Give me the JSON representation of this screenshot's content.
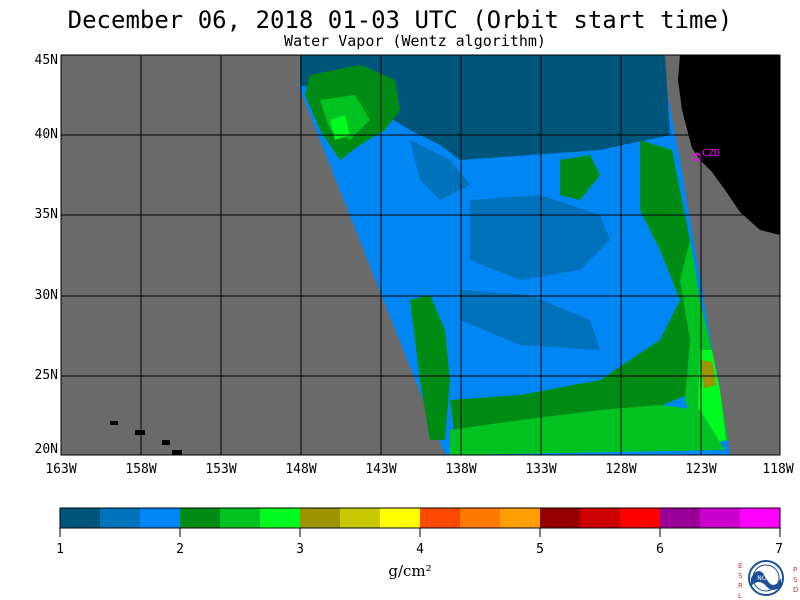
{
  "header": {
    "title": "December 06, 2018  01-03 UTC  (Orbit start time)",
    "subtitle": "Water Vapor (Wentz algorithm)"
  },
  "map": {
    "lat_labels": [
      "45N",
      "40N",
      "35N",
      "30N",
      "25N",
      "20N"
    ],
    "lon_labels": [
      "163W",
      "158W",
      "153W",
      "148W",
      "143W",
      "138W",
      "133W",
      "128W",
      "123W",
      "118W"
    ],
    "lat_range": [
      20,
      45
    ],
    "lon_range": [
      -163,
      -118
    ],
    "station_label": "CZD",
    "colors": {
      "no_data": "#6a6a6a",
      "land": "#000000",
      "grid": "#000000",
      "station": "#ff00ff"
    }
  },
  "colorbar": {
    "tick_labels": [
      "1",
      "2",
      "3",
      "4",
      "5",
      "6",
      "7"
    ],
    "units": "g/cm²",
    "range": [
      1,
      7
    ],
    "colors": [
      "#00567a",
      "#0072bb",
      "#0087f5",
      "#008c14",
      "#00c220",
      "#00fa20",
      "#9c9400",
      "#c8c800",
      "#ffff00",
      "#ff4800",
      "#ff7a00",
      "#ffa000",
      "#960000",
      "#cc0000",
      "#ff0000",
      "#980098",
      "#cc00cc",
      "#ff00ff"
    ]
  },
  "logo": {
    "name": "noaa-logo",
    "left_letters": [
      "E",
      "S",
      "R",
      "L"
    ],
    "right_letters": [
      "P",
      "S",
      "D"
    ],
    "center_text": "NOAA"
  }
}
